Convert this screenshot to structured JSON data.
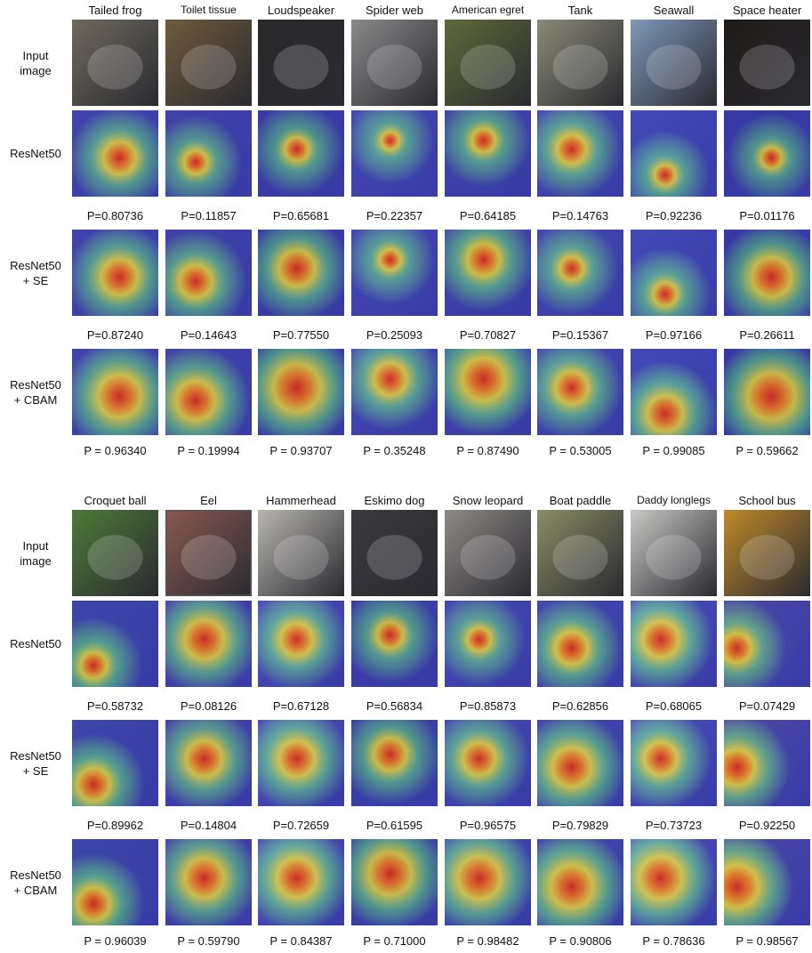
{
  "figure": {
    "blocks": [
      {
        "classes": [
          "Tailed frog",
          "Toilet tissue",
          "Loudspeaker",
          "Spider web",
          "American egret",
          "Tank",
          "Seawall",
          "Space heater"
        ],
        "row_labels": [
          "Input\nimage",
          "ResNet50",
          "ResNet50\n+ SE",
          "ResNet50\n+ CBAM"
        ],
        "probabilities": [
          [
            "P=0.80736",
            "P=0.11857",
            "P=0.65681",
            "P=0.22357",
            "P=0.64185",
            "P=0.14763",
            "P=0.92236",
            "P=0.01176"
          ],
          [
            "P=0.87240",
            "P=0.14643",
            "P=0.77550",
            "P=0.25093",
            "P=0.70827",
            "P=0.15367",
            "P=0.97166",
            "P=0.26611"
          ],
          [
            "P = 0.96340",
            "P = 0.19994",
            "P = 0.93707",
            "P = 0.35248",
            "P = 0.87490",
            "P = 0.53005",
            "P = 0.99085",
            "P = 0.59662"
          ]
        ]
      },
      {
        "classes": [
          "Croquet ball",
          "Eel",
          "Hammerhead",
          "Eskimo dog",
          "Snow leopard",
          "Boat paddle",
          "Daddy longlegs",
          "School bus"
        ],
        "row_labels": [
          "Input\nimage",
          "ResNet50",
          "ResNet50\n+ SE",
          "ResNet50\n+ CBAM"
        ],
        "probabilities": [
          [
            "P=0.58732",
            "P=0.08126",
            "P=0.67128",
            "P=0.56834",
            "P=0.85873",
            "P=0.62856",
            "P=0.68065",
            "P=0.07429"
          ],
          [
            "P=0.89962",
            "P=0.14804",
            "P=0.72659",
            "P=0.61595",
            "P=0.96575",
            "P=0.79829",
            "P=0.73723",
            "P=0.92250"
          ],
          [
            "P = 0.96039",
            "P = 0.59790",
            "P = 0.84387",
            "P = 0.71000",
            "P = 0.98482",
            "P = 0.90806",
            "P = 0.78636",
            "P = 0.98567"
          ]
        ]
      }
    ],
    "photo_colors": [
      [
        "#6f6a5e",
        "#6e5a3e",
        "#2a2a2c",
        "#8a8a8a",
        "#5d6a3a",
        "#8a8a78",
        "#7f97b8",
        "#1e1a18"
      ],
      [
        "#4f7a3a",
        "#8a5a52",
        "#b9b6b0",
        "#3a3a3e",
        "#8e8a86",
        "#8a8d66",
        "#c9c9c6",
        "#c08a2a"
      ]
    ],
    "heatmap_strength": [
      [
        [
          0.7,
          0.55,
          0.55,
          0.45,
          0.55,
          0.65,
          0.5,
          0.5
        ],
        [
          0.75,
          0.7,
          0.75,
          0.5,
          0.7,
          0.55,
          0.55,
          0.8
        ],
        [
          0.85,
          0.8,
          0.9,
          0.7,
          0.85,
          0.7,
          0.75,
          0.9
        ]
      ],
      [
        [
          0.6,
          0.8,
          0.7,
          0.6,
          0.55,
          0.7,
          0.75,
          0.65
        ],
        [
          0.7,
          0.75,
          0.75,
          0.7,
          0.7,
          0.8,
          0.7,
          0.75
        ],
        [
          0.7,
          0.8,
          0.8,
          0.85,
          0.85,
          0.85,
          0.85,
          0.85
        ]
      ]
    ]
  }
}
